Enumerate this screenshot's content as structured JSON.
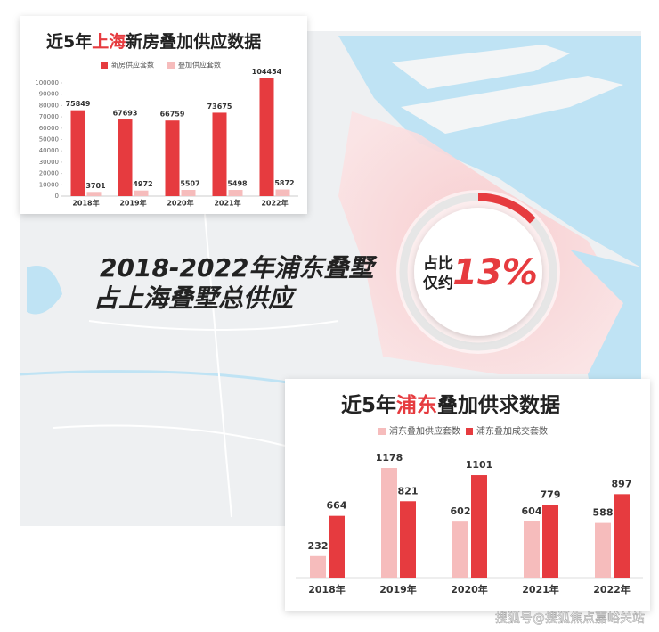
{
  "chart_data": [
    {
      "type": "bar",
      "title": [
        "近5年",
        "上海",
        "新房叠加供应数据"
      ],
      "categories": [
        "2018年",
        "2019年",
        "2020年",
        "2021年",
        "2022年"
      ],
      "series": [
        {
          "name": "新房供应套数",
          "color": "#e63b3f",
          "values": [
            75849,
            67693,
            66759,
            73675,
            104454
          ]
        },
        {
          "name": "叠加供应套数",
          "color": "#f6bcbc",
          "values": [
            3701,
            4972,
            5507,
            5498,
            5872
          ]
        }
      ],
      "ylim": [
        0,
        100000
      ],
      "yticks": [
        0,
        10000,
        20000,
        30000,
        40000,
        50000,
        60000,
        70000,
        80000,
        90000,
        100000
      ]
    },
    {
      "type": "bar",
      "title": [
        "近5年",
        "浦东",
        "叠加供求数据"
      ],
      "categories": [
        "2018年",
        "2019年",
        "2020年",
        "2021年",
        "2022年"
      ],
      "series": [
        {
          "name": "浦东叠加供应套数",
          "color": "#f6bcbc",
          "values": [
            232,
            1178,
            602,
            604,
            588
          ]
        },
        {
          "name": "浦东叠加成交套数",
          "color": "#e63b3f",
          "values": [
            664,
            821,
            1101,
            779,
            897
          ]
        }
      ]
    },
    {
      "type": "donut",
      "values": [
        13
      ],
      "value_labels": [
        "13%"
      ],
      "annotation": [
        "占比",
        "仅约"
      ],
      "color": "#e63b3f"
    }
  ],
  "headline": [
    "2018-2022年浦东叠墅",
    "占上海叠墅总供应"
  ],
  "watermark": "搜狐号@搜狐焦点嘉峪关站"
}
